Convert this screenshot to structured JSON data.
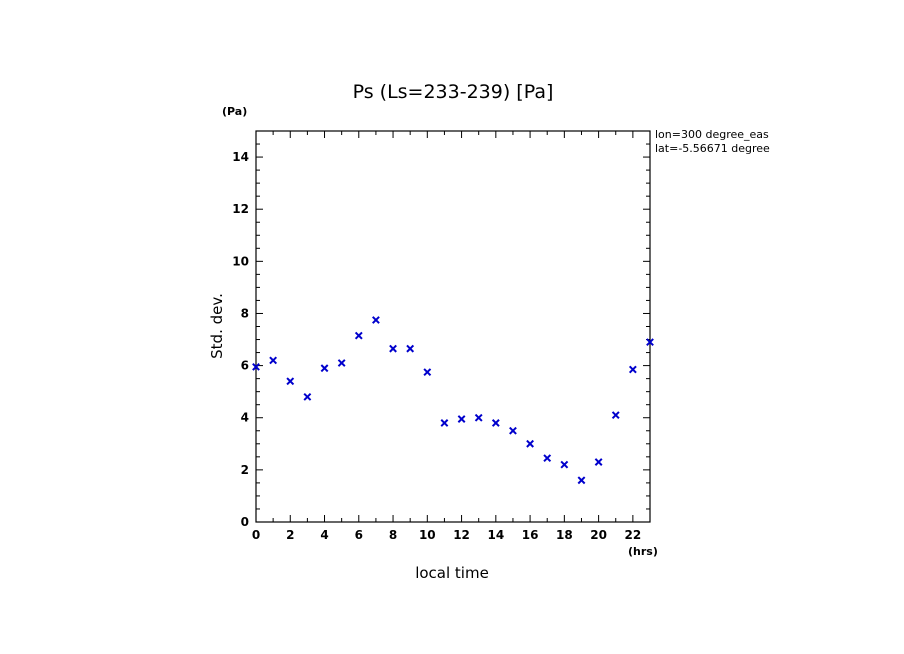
{
  "chart_data": {
    "type": "scatter",
    "title": "Ps (Ls=233-239) [Pa]",
    "xlabel": "local time",
    "ylabel": "Std. dev.",
    "x_unit": "(hrs)",
    "y_unit": "(Pa)",
    "xlim": [
      0,
      23
    ],
    "ylim": [
      0,
      15
    ],
    "x_ticks": [
      0,
      2,
      4,
      6,
      8,
      10,
      12,
      14,
      16,
      18,
      20,
      22
    ],
    "y_ticks": [
      0,
      2,
      4,
      6,
      8,
      10,
      12,
      14
    ],
    "marker": "x",
    "marker_color": "#0000cc",
    "grid": false,
    "annotations": [
      "lon=300 degree_eas",
      "lat=-5.56671 degree"
    ],
    "series": [
      {
        "x": [
          0,
          1,
          2,
          3,
          4,
          5,
          6,
          7,
          8,
          9,
          10,
          11,
          12,
          13,
          14,
          15,
          16,
          17,
          18,
          19,
          20,
          21,
          22,
          23
        ],
        "y": [
          5.95,
          6.2,
          5.4,
          4.8,
          5.9,
          6.1,
          7.15,
          7.75,
          6.65,
          6.65,
          5.75,
          3.8,
          3.95,
          4.0,
          3.8,
          3.5,
          3.0,
          2.45,
          2.2,
          1.6,
          2.3,
          4.1,
          5.85,
          6.9
        ]
      }
    ]
  }
}
